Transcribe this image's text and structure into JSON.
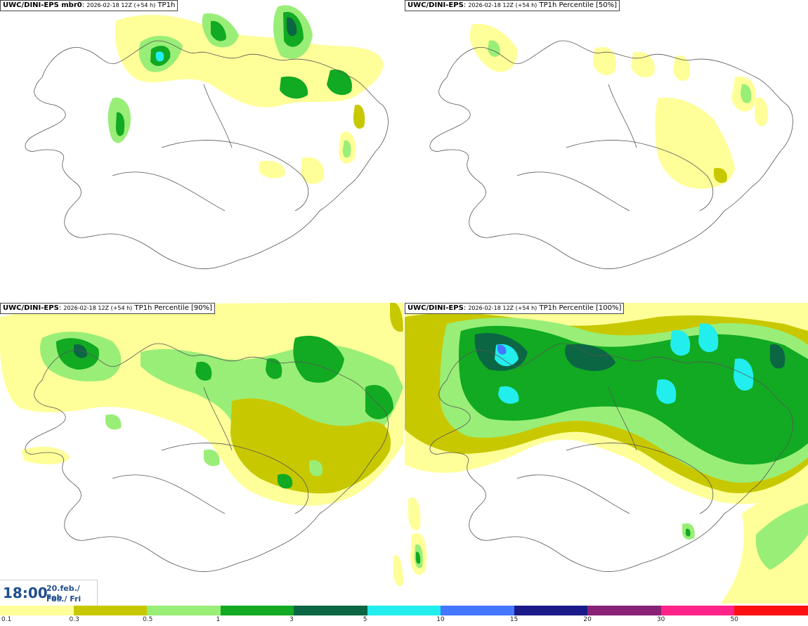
{
  "panels": [
    {
      "model": "UWC/DINI-EPS mbr0",
      "run": "2026-02-18 12Z (+54 h)",
      "field": "TP1h"
    },
    {
      "model": "UWC/DINI-EPS",
      "run": "2026-02-18 12Z (+54 h)",
      "field": "TP1h Percentile [50%]"
    },
    {
      "model": "UWC/DINI-EPS",
      "run": "2026-02-18 12Z (+54 h)",
      "field": "TP1h Percentile [90%]"
    },
    {
      "model": "UWC/DINI-EPS",
      "run": "2026-02-18 12Z (+54 h)",
      "field": "TP1h Percentile [100%]"
    }
  ],
  "valid_time": {
    "time": "18:00",
    "date_line1": "20.feb./ Feb",
    "date_line2": "Fös./ Fri"
  },
  "legend": {
    "colors": [
      "#ffff99",
      "#c8c800",
      "#99ee77",
      "#11aa22",
      "#0b6644",
      "#22eeee",
      "#4477ff",
      "#1a1a88",
      "#882277",
      "#ff2288",
      "#ff1111"
    ],
    "ticks": [
      "0.1",
      "0.3",
      "0.5",
      "1",
      "3",
      "5",
      "10",
      "15",
      "20",
      "30",
      "50"
    ]
  }
}
